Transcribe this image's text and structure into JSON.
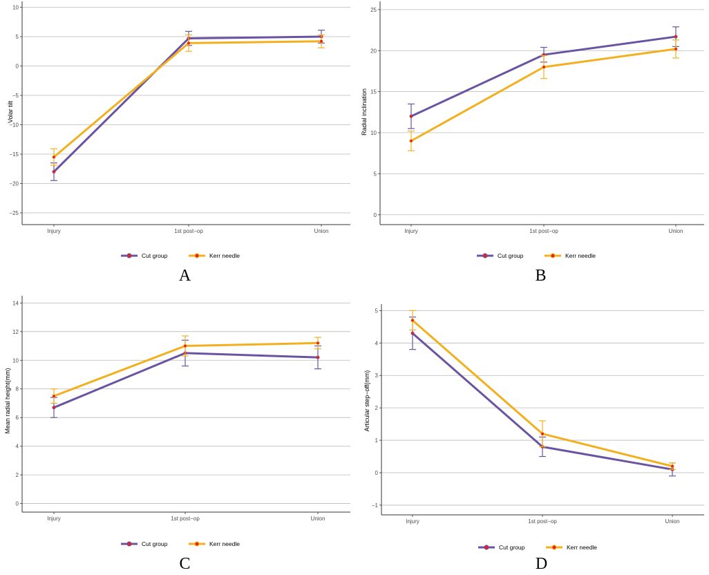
{
  "colors": {
    "cut": "#6a53a0",
    "kerr": "#f2b01e",
    "point": "#e8201a",
    "grid": "#b8b8b8",
    "axis": "#333333"
  },
  "chart_data": [
    {
      "panel_label": "A",
      "type": "line",
      "ylabel": "Volar tilt",
      "categories": [
        "Injury",
        "1st post−op",
        "Union"
      ],
      "ylim": [
        -27,
        11
      ],
      "yticks": [
        10,
        5,
        0,
        -5,
        -10,
        -15,
        -20,
        -25
      ],
      "ytick_labels": [
        "10",
        "5",
        "0",
        "−5",
        "−10",
        "−15",
        "−20",
        "−25"
      ],
      "series": [
        {
          "name": "Cut group",
          "values": [
            -18,
            4.7,
            5.0
          ],
          "error": [
            1.5,
            1.2,
            1.1
          ]
        },
        {
          "name": "Kerr needle",
          "values": [
            -15.5,
            3.9,
            4.2
          ],
          "error": [
            1.4,
            1.4,
            1.1
          ]
        }
      ],
      "legend": "bottom"
    },
    {
      "panel_label": "B",
      "type": "line",
      "ylabel": "Radial inclination",
      "categories": [
        "Injury",
        "1st post−op",
        "Union"
      ],
      "ylim": [
        -1.2,
        26
      ],
      "yticks": [
        0,
        5,
        10,
        15,
        20,
        25
      ],
      "ytick_labels": [
        "0",
        "5",
        "10",
        "15",
        "20",
        "25"
      ],
      "series": [
        {
          "name": "Cut group",
          "values": [
            12,
            19.5,
            21.7
          ],
          "error": [
            1.5,
            0.9,
            1.2
          ]
        },
        {
          "name": "Kerr needle",
          "values": [
            9,
            18,
            20.2
          ],
          "error": [
            1.2,
            1.4,
            1.1
          ]
        }
      ],
      "legend": "bottom"
    },
    {
      "panel_label": "C",
      "type": "line",
      "ylabel": "Mean radial height(mm)",
      "categories": [
        "Injury",
        "1st post−op",
        "Union"
      ],
      "ylim": [
        -0.6,
        14.5
      ],
      "yticks": [
        0,
        2,
        4,
        6,
        8,
        10,
        12,
        14
      ],
      "ytick_labels": [
        "0",
        "2",
        "4",
        "6",
        "8",
        "10",
        "12",
        "14"
      ],
      "series": [
        {
          "name": "Cut group",
          "values": [
            6.7,
            10.5,
            10.2
          ],
          "error": [
            0.7,
            0.9,
            0.8
          ]
        },
        {
          "name": "Kerr needle",
          "values": [
            7.5,
            11.0,
            11.2
          ],
          "error": [
            0.5,
            0.7,
            0.4
          ]
        }
      ],
      "legend": "bottom"
    },
    {
      "panel_label": "D",
      "type": "line",
      "ylabel": "Articular step−off(mm)",
      "categories": [
        "Injury",
        "1st post−op",
        "Union"
      ],
      "ylim": [
        -1.3,
        5.2
      ],
      "yticks": [
        5,
        4,
        3,
        2,
        1,
        0,
        -1
      ],
      "ytick_labels": [
        "5",
        "4",
        "3",
        "2",
        "1",
        "0",
        "−1"
      ],
      "series": [
        {
          "name": "Cut group",
          "values": [
            4.3,
            0.8,
            0.1
          ],
          "error": [
            0.5,
            0.3,
            0.2
          ]
        },
        {
          "name": "Kerr needle",
          "values": [
            4.7,
            1.2,
            0.2
          ],
          "error": [
            0.3,
            0.4,
            0.1
          ]
        }
      ],
      "legend": "bottom"
    }
  ]
}
